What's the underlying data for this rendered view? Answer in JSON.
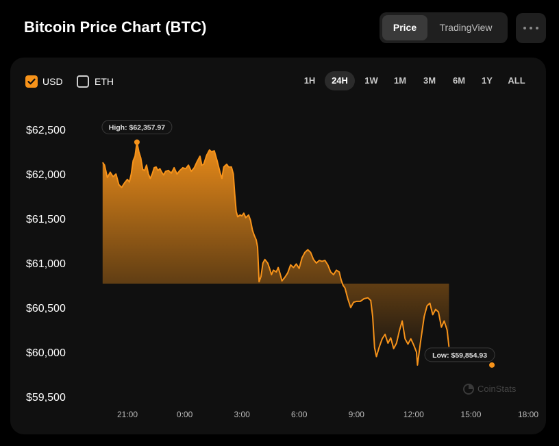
{
  "header": {
    "title": "Bitcoin Price Chart (BTC)",
    "view_tabs": [
      {
        "label": "Price",
        "active": true
      },
      {
        "label": "TradingView",
        "active": false
      }
    ],
    "more_icon": "more-horizontal-icon"
  },
  "currency_toggles": [
    {
      "label": "USD",
      "checked": true
    },
    {
      "label": "ETH",
      "checked": false
    }
  ],
  "ranges": [
    {
      "label": "1H",
      "active": false
    },
    {
      "label": "24H",
      "active": true
    },
    {
      "label": "1W",
      "active": false
    },
    {
      "label": "1M",
      "active": false
    },
    {
      "label": "3M",
      "active": false
    },
    {
      "label": "6M",
      "active": false
    },
    {
      "label": "1Y",
      "active": false
    },
    {
      "label": "ALL",
      "active": false
    }
  ],
  "watermark": "CoinStats",
  "colors": {
    "accent": "#f7931a",
    "background": "#000000",
    "panel": "#101010"
  },
  "chart_data": {
    "type": "area",
    "title": "",
    "xlabel": "",
    "ylabel": "",
    "ylim": [
      59500,
      62500
    ],
    "xlim": [
      19.7,
      18.2
    ],
    "y_ticks": [
      62500,
      62000,
      61500,
      61000,
      60500,
      60000,
      59500
    ],
    "y_tick_labels": [
      "$62,500",
      "$62,000",
      "$61,500",
      "$61,000",
      "$60,500",
      "$60,000",
      "$59,500"
    ],
    "x_ticks": [
      21,
      24,
      27,
      30,
      33,
      36,
      39,
      42
    ],
    "x_tick_labels": [
      "21:00",
      "0:00",
      "3:00",
      "6:00",
      "9:00",
      "12:00",
      "15:00",
      "18:00"
    ],
    "high": {
      "label": "High: $62,357.97",
      "x": 21.5,
      "y": 62357.97
    },
    "low": {
      "label": "Low: $59,854.93",
      "x": 40.1,
      "y": 59854.93
    },
    "series": [
      {
        "color": "#f7931a",
        "points": [
          [
            19.7,
            62130
          ],
          [
            19.8,
            62100
          ],
          [
            19.95,
            61960
          ],
          [
            20.1,
            62020
          ],
          [
            20.25,
            61970
          ],
          [
            20.4,
            62000
          ],
          [
            20.55,
            61880
          ],
          [
            20.7,
            61850
          ],
          [
            20.85,
            61900
          ],
          [
            21.0,
            61940
          ],
          [
            21.1,
            61910
          ],
          [
            21.2,
            62000
          ],
          [
            21.3,
            62150
          ],
          [
            21.4,
            62200
          ],
          [
            21.5,
            62357.97
          ],
          [
            21.6,
            62250
          ],
          [
            21.7,
            62180
          ],
          [
            21.8,
            62050
          ],
          [
            21.9,
            62040
          ],
          [
            22.0,
            62100
          ],
          [
            22.1,
            62000
          ],
          [
            22.2,
            61950
          ],
          [
            22.3,
            62000
          ],
          [
            22.4,
            62070
          ],
          [
            22.5,
            62080
          ],
          [
            22.6,
            62040
          ],
          [
            22.7,
            62060
          ],
          [
            22.8,
            62020
          ],
          [
            22.9,
            61990
          ],
          [
            23.0,
            62030
          ],
          [
            23.15,
            62040
          ],
          [
            23.3,
            62010
          ],
          [
            23.45,
            62070
          ],
          [
            23.6,
            62000
          ],
          [
            23.75,
            62040
          ],
          [
            23.9,
            62070
          ],
          [
            24.05,
            62060
          ],
          [
            24.2,
            62100
          ],
          [
            24.35,
            62030
          ],
          [
            24.5,
            62070
          ],
          [
            24.65,
            62140
          ],
          [
            24.8,
            62200
          ],
          [
            24.9,
            62100
          ],
          [
            25.0,
            62110
          ],
          [
            25.15,
            62210
          ],
          [
            25.3,
            62270
          ],
          [
            25.4,
            62250
          ],
          [
            25.55,
            62260
          ],
          [
            25.7,
            62150
          ],
          [
            25.85,
            62020
          ],
          [
            25.95,
            61950
          ],
          [
            26.05,
            62080
          ],
          [
            26.2,
            62110
          ],
          [
            26.3,
            62080
          ],
          [
            26.45,
            62080
          ],
          [
            26.55,
            62000
          ],
          [
            26.62,
            61780
          ],
          [
            26.7,
            61580
          ],
          [
            26.78,
            61520
          ],
          [
            26.9,
            61540
          ],
          [
            27.0,
            61530
          ],
          [
            27.1,
            61560
          ],
          [
            27.2,
            61510
          ],
          [
            27.35,
            61540
          ],
          [
            27.45,
            61480
          ],
          [
            27.55,
            61370
          ],
          [
            27.65,
            61310
          ],
          [
            27.75,
            61260
          ],
          [
            27.82,
            61180
          ],
          [
            27.9,
            60790
          ],
          [
            28.0,
            60850
          ],
          [
            28.1,
            61000
          ],
          [
            28.2,
            61040
          ],
          [
            28.35,
            61000
          ],
          [
            28.45,
            60940
          ],
          [
            28.55,
            60870
          ],
          [
            28.65,
            60920
          ],
          [
            28.8,
            60900
          ],
          [
            28.9,
            60950
          ],
          [
            29.0,
            60880
          ],
          [
            29.1,
            60800
          ],
          [
            29.25,
            60840
          ],
          [
            29.4,
            60890
          ],
          [
            29.55,
            60980
          ],
          [
            29.7,
            60950
          ],
          [
            29.85,
            60990
          ],
          [
            30.0,
            60940
          ],
          [
            30.15,
            61060
          ],
          [
            30.3,
            61120
          ],
          [
            30.45,
            61150
          ],
          [
            30.6,
            61120
          ],
          [
            30.75,
            61040
          ],
          [
            30.9,
            61000
          ],
          [
            31.05,
            61030
          ],
          [
            31.2,
            61020
          ],
          [
            31.35,
            61030
          ],
          [
            31.5,
            60980
          ],
          [
            31.65,
            60900
          ],
          [
            31.8,
            60870
          ],
          [
            31.95,
            60920
          ],
          [
            32.1,
            60900
          ],
          [
            32.2,
            60810
          ],
          [
            32.3,
            60750
          ],
          [
            32.4,
            60720
          ],
          [
            32.55,
            60600
          ],
          [
            32.7,
            60500
          ],
          [
            32.85,
            60560
          ],
          [
            33.0,
            60570
          ],
          [
            33.2,
            60570
          ],
          [
            33.4,
            60600
          ],
          [
            33.6,
            60610
          ],
          [
            33.75,
            60580
          ],
          [
            33.85,
            60400
          ],
          [
            33.95,
            60050
          ],
          [
            34.05,
            59950
          ],
          [
            34.2,
            60060
          ],
          [
            34.35,
            60150
          ],
          [
            34.5,
            60200
          ],
          [
            34.65,
            60100
          ],
          [
            34.8,
            60160
          ],
          [
            34.95,
            60040
          ],
          [
            35.1,
            60100
          ],
          [
            35.25,
            60240
          ],
          [
            35.4,
            60350
          ],
          [
            35.55,
            60150
          ],
          [
            35.7,
            60090
          ],
          [
            35.85,
            60150
          ],
          [
            36.0,
            60080
          ],
          [
            36.15,
            60000
          ],
          [
            36.2,
            59854.93
          ],
          [
            36.35,
            60100
          ],
          [
            36.55,
            60400
          ],
          [
            36.7,
            60520
          ],
          [
            36.85,
            60550
          ],
          [
            37.0,
            60420
          ],
          [
            37.15,
            60480
          ],
          [
            37.3,
            60450
          ],
          [
            37.45,
            60280
          ],
          [
            37.6,
            60350
          ],
          [
            37.75,
            60250
          ],
          [
            37.85,
            60060
          ]
        ]
      }
    ]
  }
}
